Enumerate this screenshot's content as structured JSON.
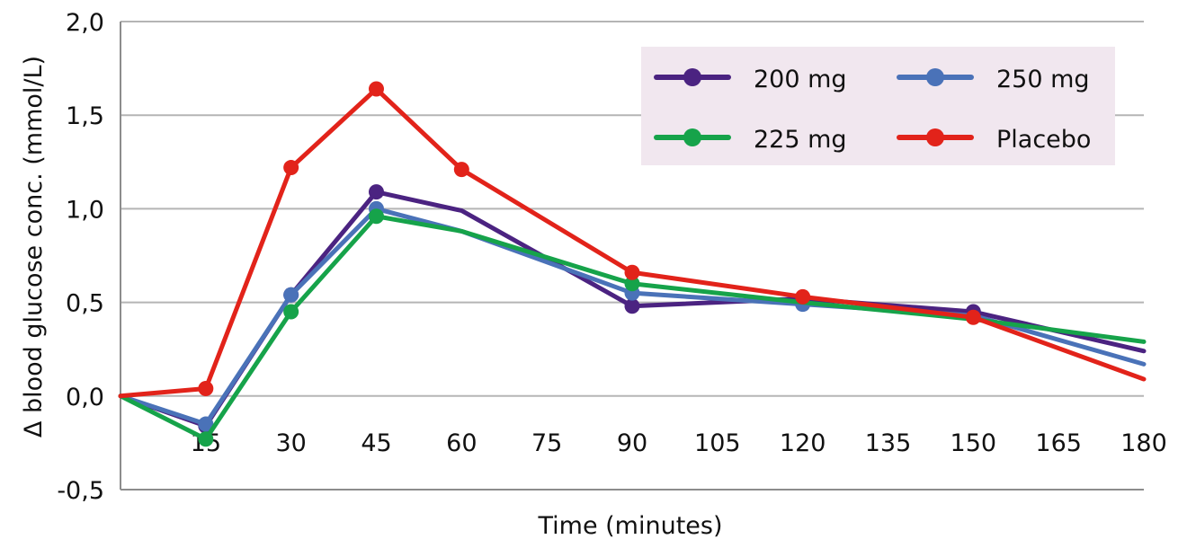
{
  "chart_data": {
    "type": "line",
    "title": "",
    "xlabel": "Time (minutes)",
    "ylabel": "Δ blood glucose conc. (mmol/L)",
    "x": [
      0,
      15,
      30,
      45,
      60,
      75,
      90,
      105,
      120,
      135,
      150,
      165,
      180
    ],
    "x_tick_labels": [
      "15",
      "30",
      "45",
      "60",
      "75",
      "90",
      "105",
      "120",
      "135",
      "150",
      "165",
      "180"
    ],
    "x_tick_values": [
      15,
      30,
      45,
      60,
      75,
      90,
      105,
      120,
      135,
      150,
      165,
      180
    ],
    "y_tick_labels": [
      "-0,5",
      "0,0",
      "0,5",
      "1,0",
      "1,5",
      "2,0"
    ],
    "y_tick_values": [
      -0.5,
      0.0,
      0.5,
      1.0,
      1.5,
      2.0
    ],
    "xlim": [
      0,
      180
    ],
    "ylim": [
      -0.5,
      2.0
    ],
    "grid": "horizontal",
    "legend_position": "top-right",
    "series": [
      {
        "name": "200 mg",
        "color": "#4b2381",
        "points": [
          [
            0,
            0
          ],
          [
            15,
            -0.16
          ],
          [
            30,
            0.54
          ],
          [
            45,
            1.09
          ],
          [
            60,
            0.99
          ],
          [
            90,
            0.48
          ],
          [
            120,
            0.52
          ],
          [
            150,
            0.45
          ],
          [
            180,
            0.24
          ]
        ],
        "markers": [
          15,
          30,
          45,
          90,
          150
        ]
      },
      {
        "name": "250 mg",
        "color": "#4a72b8",
        "points": [
          [
            0,
            0
          ],
          [
            15,
            -0.15
          ],
          [
            30,
            0.54
          ],
          [
            45,
            1.0
          ],
          [
            60,
            0.88
          ],
          [
            90,
            0.55
          ],
          [
            120,
            0.49
          ],
          [
            150,
            0.43
          ],
          [
            180,
            0.17
          ]
        ],
        "markers": [
          15,
          30,
          45,
          90,
          120
        ]
      },
      {
        "name": "225 mg",
        "color": "#16a34a",
        "points": [
          [
            0,
            0
          ],
          [
            15,
            -0.23
          ],
          [
            30,
            0.45
          ],
          [
            45,
            0.96
          ],
          [
            60,
            0.88
          ],
          [
            90,
            0.6
          ],
          [
            120,
            0.5
          ],
          [
            150,
            0.41
          ],
          [
            180,
            0.29
          ]
        ],
        "markers": [
          15,
          30,
          45,
          90
        ]
      },
      {
        "name": "Placebo",
        "color": "#e2231a",
        "points": [
          [
            0,
            0
          ],
          [
            15,
            0.04
          ],
          [
            30,
            1.22
          ],
          [
            45,
            1.64
          ],
          [
            60,
            1.21
          ],
          [
            90,
            0.66
          ],
          [
            120,
            0.53
          ],
          [
            150,
            0.42
          ],
          [
            180,
            0.09
          ]
        ],
        "markers": [
          15,
          30,
          45,
          60,
          90,
          120,
          150
        ]
      }
    ],
    "legend": {
      "background": "#f1e7ef",
      "items": [
        {
          "series": "200 mg"
        },
        {
          "series": "250 mg"
        },
        {
          "series": "225 mg"
        },
        {
          "series": "Placebo"
        }
      ]
    },
    "colors": {
      "grid": "#b5b5b5",
      "axis": "#8c8c8c"
    }
  }
}
